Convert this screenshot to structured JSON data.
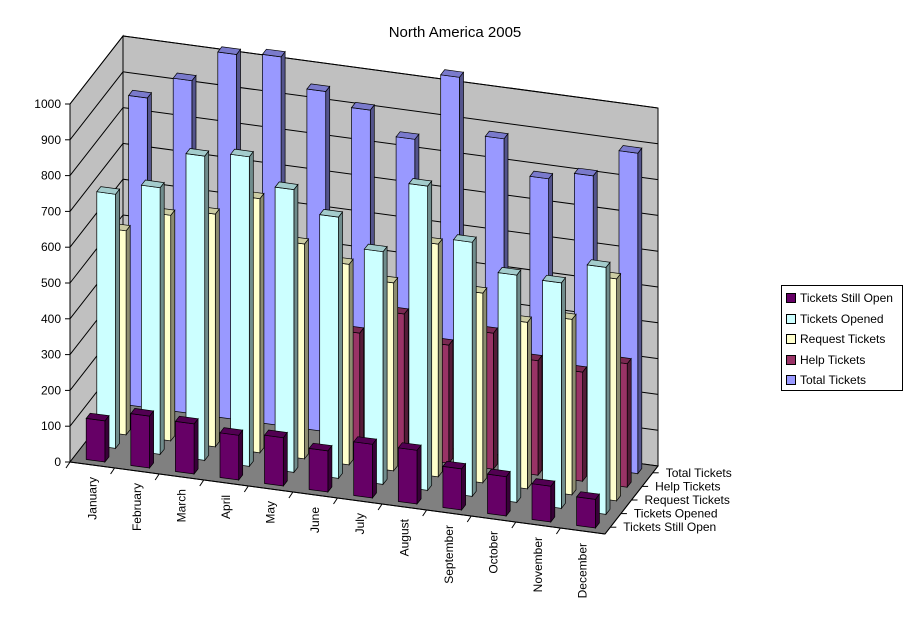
{
  "chart_data": {
    "type": "bar",
    "subtype": "3d-column",
    "title": "North America 2005",
    "categories": [
      "January",
      "February",
      "March",
      "April",
      "May",
      "June",
      "July",
      "August",
      "September",
      "October",
      "November",
      "December"
    ],
    "series": [
      {
        "name": "Tickets Still Open",
        "color": "#660066",
        "values": [
          115,
          145,
          140,
          125,
          135,
          115,
          150,
          150,
          115,
          110,
          100,
          80
        ]
      },
      {
        "name": "Tickets Opened",
        "color": "#ccffff",
        "values": [
          710,
          745,
          850,
          865,
          790,
          730,
          650,
          850,
          710,
          635,
          630,
          690
        ]
      },
      {
        "name": "Request Tickets",
        "color": "#ffffcc",
        "values": [
          570,
          630,
          650,
          710,
          600,
          560,
          525,
          650,
          530,
          465,
          490,
          620
        ]
      },
      {
        "name": "Help Tickets",
        "color": "#993366",
        "values": [
          0,
          0,
          0,
          0,
          0,
          330,
          400,
          330,
          380,
          320,
          305,
          345
        ]
      },
      {
        "name": "Total Tickets",
        "color": "#9999ff",
        "values": [
          865,
          930,
          1020,
          1030,
          950,
          915,
          850,
          1040,
          885,
          790,
          815,
          895
        ]
      }
    ],
    "y_axis": {
      "min": 0,
      "max": 1000,
      "step": 100,
      "ticks": [
        "0",
        "100",
        "200",
        "300",
        "400",
        "500",
        "600",
        "700",
        "800",
        "900",
        "1000"
      ]
    },
    "depth_axis_labels": [
      "Tickets Still Open",
      "Tickets Opened",
      "Request Tickets",
      "Help Tickets",
      "Total Tickets"
    ],
    "gridlines": true,
    "walls_color": "#c0c0c0",
    "legend_position": "right"
  }
}
